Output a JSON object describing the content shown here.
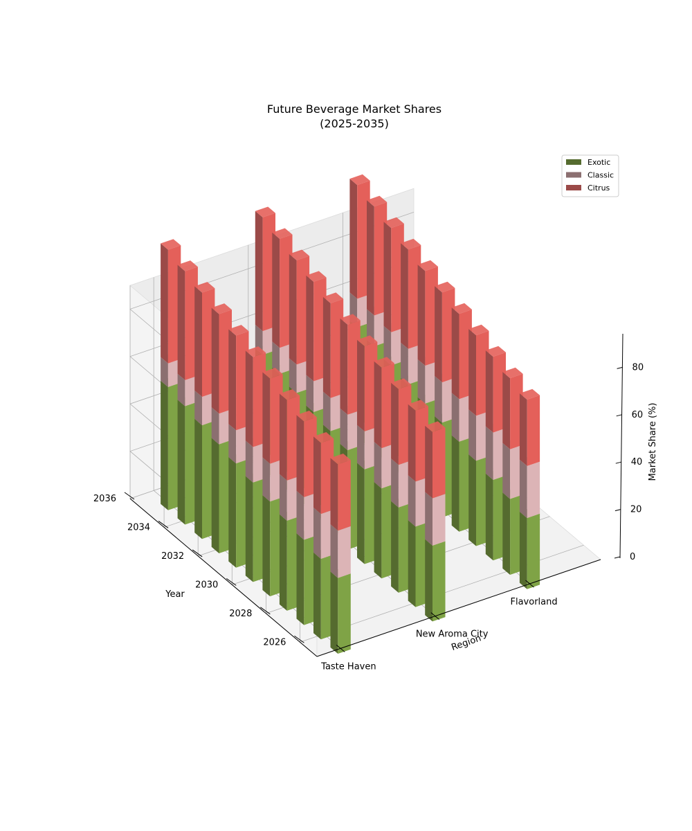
{
  "chart_data": {
    "type": "bar3d-stacked",
    "title": "Future Beverage Market Shares\n(2025-2035)",
    "xlabel": "Region",
    "ylabel": "Year",
    "zlabel": "Market Share (%)",
    "categories": [
      "Taste Haven",
      "New Aroma City",
      "Flavorland"
    ],
    "years": [
      2025,
      2026,
      2027,
      2028,
      2029,
      2030,
      2031,
      2032,
      2033,
      2034,
      2035
    ],
    "year_ticks": [
      2026,
      2028,
      2030,
      2032,
      2034,
      2036
    ],
    "z_ticks": [
      0,
      20,
      40,
      60,
      80
    ],
    "zlim": [
      0,
      90
    ],
    "ylim": [
      2025,
      2036
    ],
    "legend_position": "top-right",
    "series": [
      {
        "name": "Exotic",
        "color": "#556B2F",
        "light": "#7fa346",
        "values": [
          [
            32,
            34,
            36,
            38,
            40,
            42,
            44,
            46,
            48,
            50,
            52
          ],
          [
            32,
            34,
            36,
            38,
            40,
            42,
            44,
            46,
            48,
            50,
            52
          ],
          [
            30,
            32,
            34,
            36,
            38,
            40,
            42,
            44,
            46,
            48,
            50
          ]
        ]
      },
      {
        "name": "Classic",
        "color": "#8B6F70",
        "light": "#dcb4b6",
        "values": [
          [
            20,
            19,
            18,
            17,
            16,
            15,
            14,
            13,
            12,
            11,
            10
          ],
          [
            20,
            19,
            18,
            17,
            16,
            15,
            14,
            13,
            12,
            11,
            10
          ],
          [
            22,
            21,
            20,
            19,
            18,
            17,
            16,
            15,
            14,
            13,
            12
          ]
        ]
      },
      {
        "name": "Citrus",
        "color": "#9B4A48",
        "light": "#e4605a",
        "values": [
          [
            28,
            30,
            32,
            34,
            36,
            38,
            40,
            42,
            44,
            46,
            48
          ],
          [
            28,
            30,
            32,
            34,
            36,
            38,
            40,
            42,
            44,
            46,
            48
          ],
          [
            28,
            30,
            32,
            34,
            36,
            38,
            40,
            42,
            44,
            46,
            48
          ]
        ]
      }
    ]
  }
}
